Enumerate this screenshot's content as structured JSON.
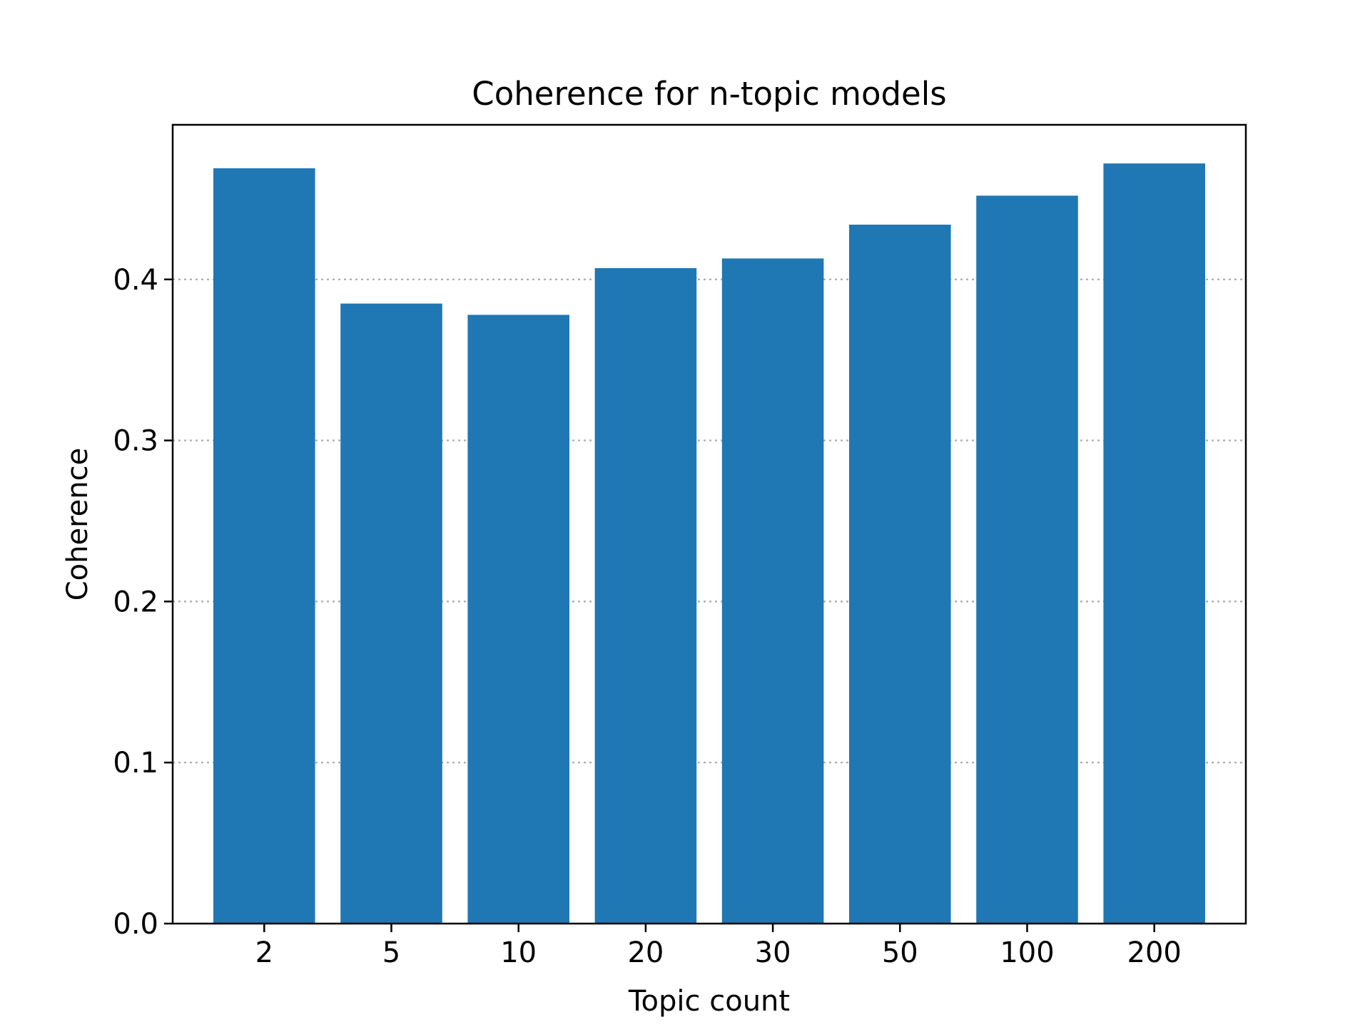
{
  "chart_data": {
    "type": "bar",
    "title": "Coherence for n-topic models",
    "xlabel": "Topic count",
    "ylabel": "Coherence",
    "categories": [
      "2",
      "5",
      "10",
      "20",
      "30",
      "50",
      "100",
      "200"
    ],
    "values": [
      0.469,
      0.385,
      0.378,
      0.407,
      0.413,
      0.434,
      0.452,
      0.472
    ],
    "ylim": [
      0,
      0.496
    ],
    "yticks": [
      0.0,
      0.1,
      0.2,
      0.3,
      0.4
    ],
    "ytick_labels": [
      "0.0",
      "0.1",
      "0.2",
      "0.3",
      "0.4"
    ],
    "grid": {
      "axis": "y",
      "style": "dotted",
      "color": "#b0b0b0"
    },
    "bar_color": "#1f77b4",
    "legend": null
  }
}
